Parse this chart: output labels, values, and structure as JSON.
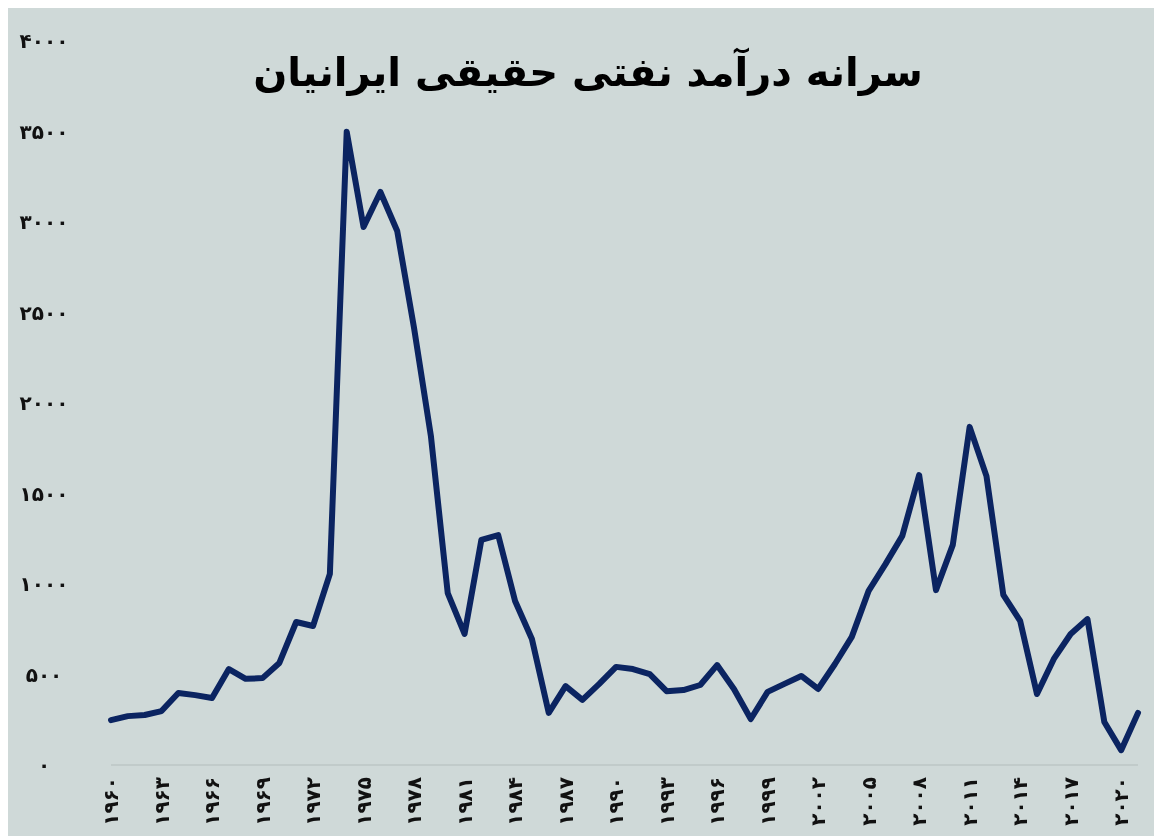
{
  "chart_data": {
    "type": "line",
    "title": "سرانه درآمد نفتی حقیقی ایرانیان",
    "x": [
      1960,
      1961,
      1962,
      1963,
      1964,
      1965,
      1966,
      1967,
      1968,
      1969,
      1970,
      1971,
      1972,
      1973,
      1974,
      1975,
      1976,
      1977,
      1978,
      1979,
      1980,
      1981,
      1982,
      1983,
      1984,
      1985,
      1986,
      1987,
      1988,
      1989,
      1990,
      1991,
      1992,
      1993,
      1994,
      1995,
      1996,
      1997,
      1998,
      1999,
      2000,
      2001,
      2002,
      2003,
      2004,
      2005,
      2006,
      2007,
      2008,
      2009,
      2010,
      2011,
      2012,
      2013,
      2014,
      2015,
      2016,
      2017,
      2018,
      2019,
      2020,
      2021
    ],
    "series": [
      {
        "color": "#0b2461",
        "values": [
          248,
          270,
          276,
          298,
          398,
          386,
          370,
          530,
          476,
          480,
          564,
          790,
          768,
          1056,
          3498,
          2972,
          3166,
          2950,
          2414,
          1818,
          950,
          724,
          1244,
          1270,
          906,
          696,
          288,
          436,
          360,
          448,
          542,
          530,
          502,
          408,
          414,
          442,
          552,
          420,
          254,
          404,
          448,
          492,
          420,
          558,
          708,
          962,
          1110,
          1266,
          1602,
          966,
          1216,
          1868,
          1596,
          940,
          796,
          392,
          586,
          724,
          806,
          238,
          82,
          288
        ]
      }
    ],
    "xticks": [
      {
        "value": 1960,
        "label": "۱۹۶۰"
      },
      {
        "value": 1963,
        "label": "۱۹۶۳"
      },
      {
        "value": 1966,
        "label": "۱۹۶۶"
      },
      {
        "value": 1969,
        "label": "۱۹۶۹"
      },
      {
        "value": 1972,
        "label": "۱۹۷۲"
      },
      {
        "value": 1975,
        "label": "۱۹۷۵"
      },
      {
        "value": 1978,
        "label": "۱۹۷۸"
      },
      {
        "value": 1981,
        "label": "۱۹۸۱"
      },
      {
        "value": 1984,
        "label": "۱۹۸۴"
      },
      {
        "value": 1987,
        "label": "۱۹۸۷"
      },
      {
        "value": 1990,
        "label": "۱۹۹۰"
      },
      {
        "value": 1993,
        "label": "۱۹۹۳"
      },
      {
        "value": 1996,
        "label": "۱۹۹۶"
      },
      {
        "value": 1999,
        "label": "۱۹۹۹"
      },
      {
        "value": 2002,
        "label": "۲۰۰۲"
      },
      {
        "value": 2005,
        "label": "۲۰۰۵"
      },
      {
        "value": 2008,
        "label": "۲۰۰۸"
      },
      {
        "value": 2011,
        "label": "۲۰۱۱"
      },
      {
        "value": 2014,
        "label": "۲۰۱۴"
      },
      {
        "value": 2017,
        "label": "۲۰۱۷"
      },
      {
        "value": 2020,
        "label": "۲۰۲۰"
      }
    ],
    "xlim": [
      1960,
      2021
    ],
    "ylim": [
      0,
      4000
    ],
    "yticks": [
      {
        "value": 0,
        "label": "۰"
      },
      {
        "value": 500,
        "label": "۵۰۰"
      },
      {
        "value": 1000,
        "label": "۱۰۰۰"
      },
      {
        "value": 1500,
        "label": "۱۵۰۰"
      },
      {
        "value": 2000,
        "label": "۲۰۰۰"
      },
      {
        "value": 2500,
        "label": "۲۵۰۰"
      },
      {
        "value": 3000,
        "label": "۳۰۰۰"
      },
      {
        "value": 3500,
        "label": "۳۵۰۰"
      },
      {
        "value": 4000,
        "label": "۴۰۰۰"
      }
    ],
    "grid": false,
    "marker": "none",
    "line_style": "solid"
  }
}
